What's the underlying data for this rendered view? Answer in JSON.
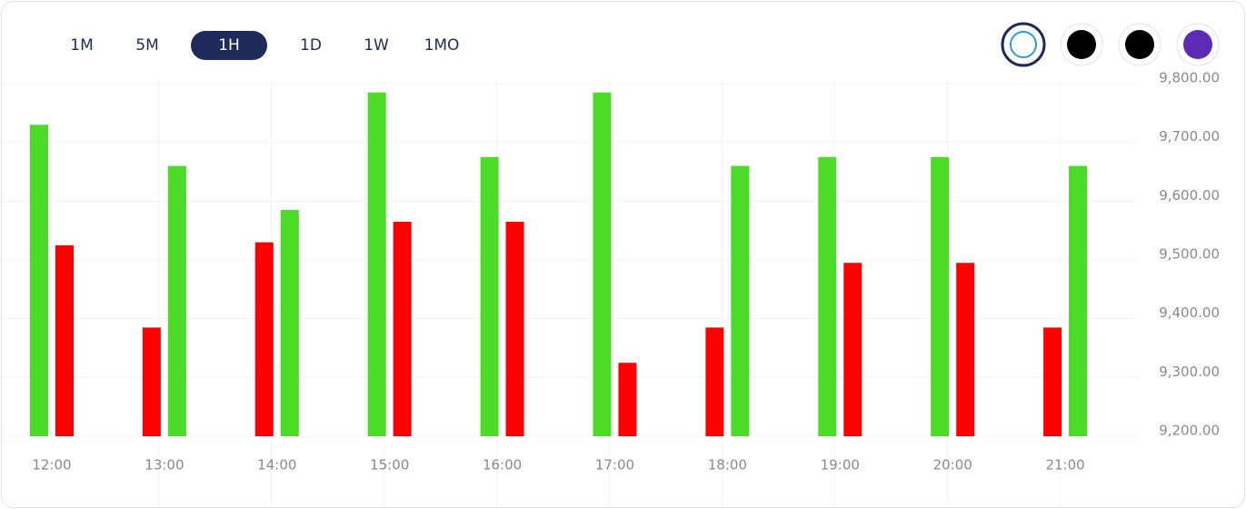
{
  "chart_data": {
    "type": "bar",
    "intervals": [
      "1M",
      "5M",
      "1H",
      "1D",
      "1W",
      "1MO"
    ],
    "active_interval": 2,
    "categories": [
      "12:00",
      "13:00",
      "14:00",
      "15:00",
      "16:00",
      "17:00",
      "18:00",
      "19:00",
      "20:00",
      "21:00"
    ],
    "series": [
      {
        "colors": [
          "#4cdb27",
          "#ff0000",
          "#ff0000",
          "#4cdb27",
          "#4cdb27",
          "#4cdb27",
          "#ff0000",
          "#4cdb27",
          "#4cdb27",
          "#ff0000"
        ],
        "values": [
          9730,
          9385,
          9530,
          9785,
          9675,
          9785,
          9385,
          9675,
          9675,
          9385
        ]
      },
      {
        "colors": [
          "#ff0000",
          "#4cdb27",
          "#4cdb27",
          "#ff0000",
          "#ff0000",
          "#ff0000",
          "#4cdb27",
          "#ff0000",
          "#ff0000",
          "#4cdb27"
        ],
        "values": [
          9525,
          9660,
          9585,
          9565,
          9565,
          9325,
          9660,
          9495,
          9495,
          9660
        ]
      }
    ],
    "ylim": [
      9200,
      9800
    ],
    "yticks": [
      {
        "value": 9200,
        "label": "9,200.00"
      },
      {
        "value": 9300,
        "label": "9,300.00"
      },
      {
        "value": 9400,
        "label": "9,400.00"
      },
      {
        "value": 9500,
        "label": "9,500.00"
      },
      {
        "value": 9600,
        "label": "9,600.00"
      },
      {
        "value": 9700,
        "label": "9,700.00"
      },
      {
        "value": 9800,
        "label": "9,800.00"
      }
    ],
    "grid": true
  }
}
